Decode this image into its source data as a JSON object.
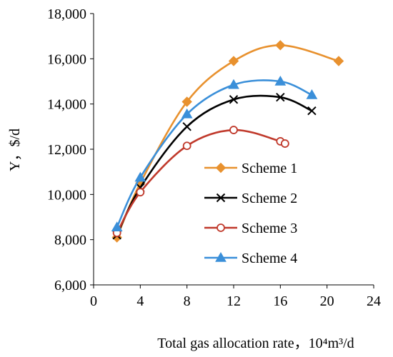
{
  "chart_data": {
    "type": "line",
    "title": "",
    "xlabel": "Total gas allocation rate，10⁴m³/d",
    "ylabel": "Y，$/d",
    "xlim": [
      0,
      24
    ],
    "ylim": [
      6000,
      18000
    ],
    "x_ticks": [
      "0",
      "4",
      "8",
      "12",
      "16",
      "20",
      "24"
    ],
    "y_ticks": [
      "6,000",
      "8,000",
      "10,000",
      "12,000",
      "14,000",
      "16,000",
      "18,000"
    ],
    "grid": false,
    "legend_position": "center-right",
    "series": [
      {
        "name": "Scheme 1",
        "color": "#E8912E",
        "marker": "diamond",
        "points": [
          [
            2,
            8100
          ],
          [
            4,
            10500
          ],
          [
            8,
            14100
          ],
          [
            12,
            15900
          ],
          [
            16,
            16600
          ],
          [
            21,
            15900
          ]
        ]
      },
      {
        "name": "Scheme 2",
        "color": "#000000",
        "marker": "x",
        "points": [
          [
            2,
            8200
          ],
          [
            4,
            10300
          ],
          [
            8,
            13000
          ],
          [
            12,
            14200
          ],
          [
            16,
            14300
          ],
          [
            18.7,
            13700
          ]
        ]
      },
      {
        "name": "Scheme 3",
        "color": "#C0392B",
        "marker": "circle",
        "points": [
          [
            2,
            8300
          ],
          [
            4,
            10100
          ],
          [
            8,
            12150
          ],
          [
            12,
            12850
          ],
          [
            16,
            12350
          ],
          [
            16.4,
            12250
          ]
        ]
      },
      {
        "name": "Scheme 4",
        "color": "#3A8FD9",
        "marker": "triangle",
        "points": [
          [
            2,
            8550
          ],
          [
            4,
            10750
          ],
          [
            8,
            13550
          ],
          [
            12,
            14850
          ],
          [
            16,
            15000
          ],
          [
            18.7,
            14400
          ]
        ]
      }
    ]
  }
}
